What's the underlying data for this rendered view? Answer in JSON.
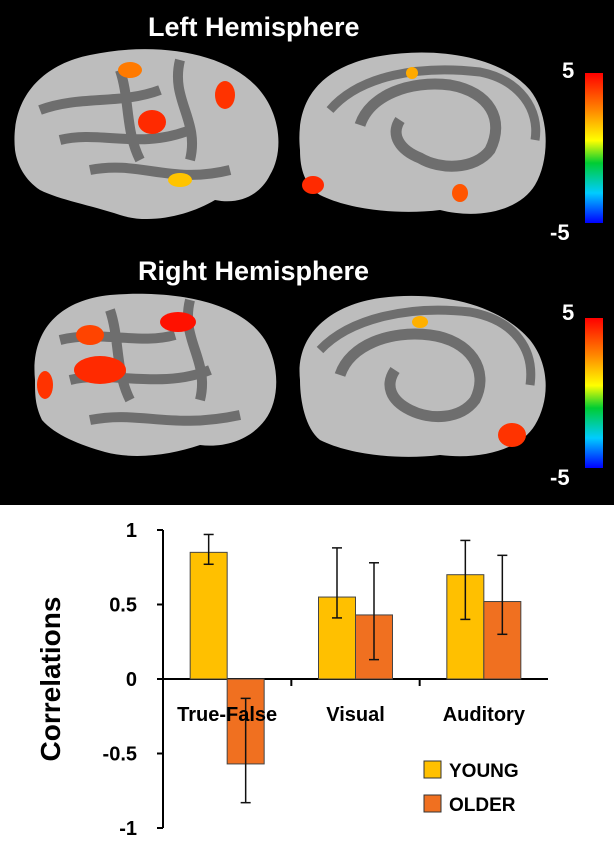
{
  "brain_panel": {
    "left_title": "Left Hemisphere",
    "right_title": "Right Hemisphere",
    "colorbar_top": "5",
    "colorbar_bottom": "-5",
    "colorbar_colors": [
      "#ff0000",
      "#ff8800",
      "#ffff00",
      "#00cc33",
      "#00ccff",
      "#0000ff"
    ]
  },
  "chart_data": {
    "type": "bar",
    "categories": [
      "True-False",
      "Visual",
      "Auditory"
    ],
    "ylabel": "Correlations",
    "ylim": [
      -1,
      1
    ],
    "yticks": [
      "1",
      "0.5",
      "0",
      "-0.5",
      "-1"
    ],
    "legend_position": "bottom-right",
    "series": [
      {
        "name": "YOUNG",
        "color": "#FFC000",
        "values": [
          0.85,
          0.55,
          0.7
        ],
        "err_low": [
          0.77,
          0.41,
          0.4
        ],
        "err_high": [
          0.97,
          0.88,
          0.93
        ]
      },
      {
        "name": "OLDER",
        "color": "#F07020",
        "values": [
          -0.57,
          0.43,
          0.52
        ],
        "err_low": [
          -0.83,
          0.13,
          0.3
        ],
        "err_high": [
          -0.13,
          0.78,
          0.83
        ]
      }
    ]
  }
}
